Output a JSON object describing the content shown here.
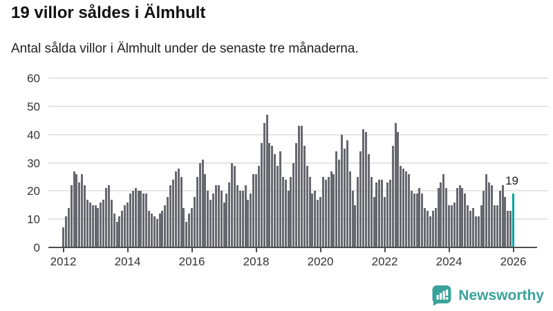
{
  "header": {
    "title": "19 villor såldes i Älmhult",
    "subtitle": "Antal sålda villor i Älmhult under de senaste tre månaderna."
  },
  "chart_data": {
    "type": "bar",
    "title": "19 villor såldes i Älmhult",
    "xlabel": "",
    "ylabel": "",
    "ylim": [
      0,
      60
    ],
    "grid": true,
    "legend": "none",
    "y_ticks": [
      0,
      10,
      20,
      30,
      40,
      50,
      60
    ],
    "x_tick_labels": [
      "2012",
      "2014",
      "2016",
      "2018",
      "2020",
      "2022",
      "2024",
      "2026"
    ],
    "x_description": "one bar per month, Jan 2012 through 2026",
    "values": [
      7,
      11,
      14,
      22,
      27,
      26,
      23,
      26,
      22,
      17,
      16,
      15,
      15,
      14,
      16,
      17,
      21,
      22,
      17,
      12,
      9,
      11,
      13,
      15,
      16,
      19,
      20,
      21,
      20,
      20,
      19,
      19,
      13,
      12,
      11,
      10,
      12,
      13,
      15,
      18,
      22,
      24,
      27,
      28,
      25,
      14,
      9,
      12,
      14,
      18,
      25,
      30,
      31,
      26,
      20,
      17,
      19,
      22,
      22,
      20,
      16,
      19,
      23,
      30,
      29,
      22,
      20,
      20,
      22,
      17,
      19,
      26,
      26,
      29,
      37,
      44,
      47,
      37,
      36,
      33,
      29,
      34,
      25,
      24,
      20,
      25,
      30,
      37,
      43,
      43,
      36,
      29,
      25,
      19,
      20,
      17,
      18,
      25,
      24,
      25,
      27,
      26,
      34,
      31,
      40,
      35,
      38,
      27,
      20,
      15,
      25,
      34,
      42,
      41,
      33,
      25,
      18,
      23,
      24,
      24,
      18,
      23,
      24,
      36,
      44,
      41,
      29,
      28,
      27,
      26,
      20,
      19,
      19,
      21,
      19,
      14,
      13,
      11,
      13,
      14,
      21,
      23,
      26,
      21,
      15,
      15,
      16,
      21,
      22,
      21,
      19,
      15,
      13,
      14,
      11,
      11,
      15,
      20,
      26,
      23,
      22,
      15,
      15,
      20,
      22,
      18,
      13,
      13,
      19
    ],
    "highlight_index": 168,
    "highlight_value_label": "19",
    "bar_color": "#67676f",
    "highlight_color": "#00a3a3",
    "grid_color": "#e4e4e4",
    "axis_color": "#4d4d4d"
  },
  "footer": {
    "brand": "Newsworthy",
    "brand_color": "#3aa29a"
  }
}
